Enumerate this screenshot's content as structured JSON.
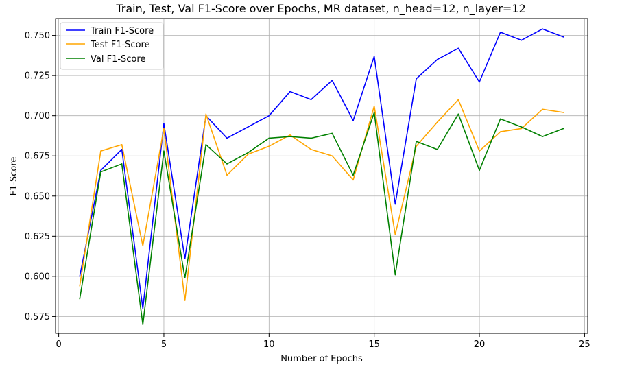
{
  "chart_data": {
    "type": "line",
    "title": "Train, Test, Val F1-Score over Epochs, MR dataset, n_head=12, n_layer=12",
    "xlabel": "Number of Epochs",
    "ylabel": "F1-Score",
    "xlim": [
      -0.15,
      25.15
    ],
    "ylim": [
      0.5645,
      0.7605
    ],
    "xticks": [
      0,
      5,
      10,
      15,
      20,
      25
    ],
    "yticks": [
      0.575,
      0.6,
      0.625,
      0.65,
      0.675,
      0.7,
      0.725,
      0.75
    ],
    "xtick_labels": [
      "0",
      "5",
      "10",
      "15",
      "20",
      "25"
    ],
    "ytick_labels": [
      "0.575",
      "0.600",
      "0.625",
      "0.650",
      "0.675",
      "0.700",
      "0.725",
      "0.750"
    ],
    "grid": true,
    "legend_position": "top-left",
    "x": [
      1,
      2,
      3,
      4,
      5,
      6,
      7,
      8,
      9,
      10,
      11,
      12,
      13,
      14,
      15,
      16,
      17,
      18,
      19,
      20,
      21,
      22,
      23,
      24
    ],
    "series": [
      {
        "name": "Train F1-Score",
        "color": "#0000ff",
        "values": [
          0.6,
          0.666,
          0.679,
          0.58,
          0.695,
          0.611,
          0.7,
          0.686,
          0.693,
          0.7,
          0.715,
          0.71,
          0.722,
          0.697,
          0.737,
          0.645,
          0.723,
          0.735,
          0.742,
          0.721,
          0.752,
          0.747,
          0.754,
          0.749
        ]
      },
      {
        "name": "Test F1-Score",
        "color": "#ffa500",
        "values": [
          0.594,
          0.678,
          0.682,
          0.619,
          0.692,
          0.585,
          0.701,
          0.663,
          0.676,
          0.681,
          0.688,
          0.679,
          0.675,
          0.66,
          0.706,
          0.626,
          0.681,
          0.696,
          0.71,
          0.678,
          0.69,
          0.692,
          0.704,
          0.702
        ]
      },
      {
        "name": "Val F1-Score",
        "color": "#008000",
        "values": [
          0.586,
          0.665,
          0.67,
          0.57,
          0.678,
          0.599,
          0.682,
          0.67,
          0.677,
          0.686,
          0.687,
          0.686,
          0.689,
          0.663,
          0.702,
          0.601,
          0.684,
          0.679,
          0.701,
          0.666,
          0.698,
          0.693,
          0.687,
          0.692
        ]
      }
    ]
  }
}
